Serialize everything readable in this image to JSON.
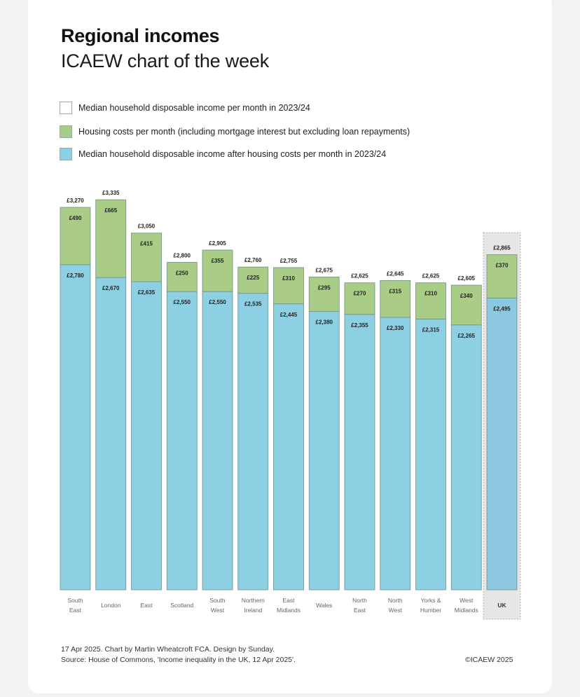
{
  "header": {
    "title": "Regional incomes",
    "subtitle": "ICAEW chart of the week"
  },
  "legend": [
    {
      "label": "Median household disposable income per month in 2023/24",
      "color": "#ffffff"
    },
    {
      "label": "Housing costs per month (including mortgage interest but excluding loan repayments)",
      "color": "#a9cc86"
    },
    {
      "label": "Median household disposable income after housing costs per month in 2023/24",
      "color": "#8dd0e4"
    }
  ],
  "colors": {
    "housing": "#a9cc86",
    "after_housing": "#8dd0e4",
    "uk_after_housing": "#8cc9e0",
    "highlight_bg": "#e6e6e6",
    "bar_border": "#6f8f8a"
  },
  "footer": {
    "credit": "17 Apr 2025.   Chart by Martin Wheatcroft FCA. Design by Sunday.",
    "source": "Source: House of Commons, 'Income inequality in the UK, 12 Apr 2025'.",
    "copyright": "©ICAEW 2025"
  },
  "chart_data": {
    "type": "bar",
    "stacked": true,
    "title": "Regional incomes",
    "subtitle": "ICAEW chart of the week",
    "xlabel": "",
    "ylabel": "",
    "ylim": [
      0,
      3335
    ],
    "grid": false,
    "legend_position": "top-left",
    "categories": [
      [
        "South",
        "East"
      ],
      [
        "London"
      ],
      [
        "East"
      ],
      [
        "Scotland"
      ],
      [
        "South",
        "West"
      ],
      [
        "Northern",
        "Ireland"
      ],
      [
        "East",
        "Midlands"
      ],
      [
        "Wales"
      ],
      [
        "North",
        "East"
      ],
      [
        "North",
        "West"
      ],
      [
        "Yorks &",
        "Humber"
      ],
      [
        "West",
        "Midlands"
      ],
      [
        "UK"
      ]
    ],
    "highlight_category": "UK",
    "series": [
      {
        "name": "Median household disposable income after housing costs per month in 2023/24",
        "values": [
          2780,
          2670,
          2635,
          2550,
          2550,
          2535,
          2445,
          2380,
          2355,
          2330,
          2315,
          2265,
          2495
        ],
        "labels": [
          "£2,780",
          "£2,670",
          "£2,635",
          "£2,550",
          "£2,550",
          "£2,535",
          "£2,445",
          "£2,380",
          "£2,355",
          "£2,330",
          "£2,315",
          "£2,265",
          "£2,495"
        ]
      },
      {
        "name": "Housing costs per month (including mortgage interest but excluding loan repayments)",
        "values": [
          490,
          665,
          415,
          250,
          355,
          225,
          310,
          295,
          270,
          315,
          310,
          340,
          370
        ],
        "labels": [
          "£490",
          "£665",
          "£415",
          "£250",
          "£355",
          "£225",
          "£310",
          "£295",
          "£270",
          "£315",
          "£310",
          "£340",
          "£370"
        ]
      }
    ],
    "totals": {
      "name": "Median household disposable income per month in 2023/24",
      "values": [
        3270,
        3335,
        3050,
        2800,
        2905,
        2760,
        2755,
        2675,
        2625,
        2645,
        2625,
        2605,
        2865
      ],
      "labels": [
        "£3,270",
        "£3,335",
        "£3,050",
        "£2,800",
        "£2,905",
        "£2,760",
        "£2,755",
        "£2,675",
        "£2,625",
        "£2,645",
        "£2,625",
        "£2,605",
        "£2,865"
      ]
    }
  }
}
